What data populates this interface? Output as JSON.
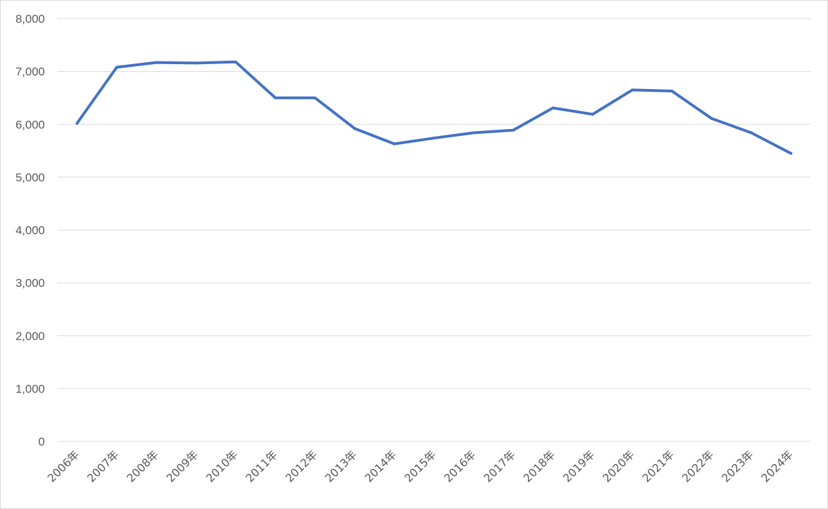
{
  "chart_data": {
    "type": "line",
    "title": "",
    "xlabel": "",
    "ylabel": "",
    "categories": [
      "2006年",
      "2007年",
      "2008年",
      "2009年",
      "2010年",
      "2011年",
      "2012年",
      "2013年",
      "2014年",
      "2015年",
      "2016年",
      "2017年",
      "2018年",
      "2019年",
      "2020年",
      "2021年",
      "2022年",
      "2023年",
      "2024年"
    ],
    "series": [
      {
        "values": [
          6020,
          7080,
          7170,
          7160,
          7180,
          6500,
          6500,
          5920,
          5630,
          5740,
          5840,
          5890,
          6310,
          6190,
          6650,
          6630,
          6110,
          5840,
          5450
        ],
        "color": "#4472c4"
      }
    ],
    "ylim": [
      0,
      8000
    ],
    "yticks": [
      0,
      1000,
      2000,
      3000,
      4000,
      5000,
      6000,
      7000,
      8000
    ],
    "ytick_labels": [
      "0",
      "1,000",
      "2,000",
      "3,000",
      "4,000",
      "5,000",
      "6,000",
      "7,000",
      "8,000"
    ],
    "grid": true,
    "legend": "none"
  }
}
